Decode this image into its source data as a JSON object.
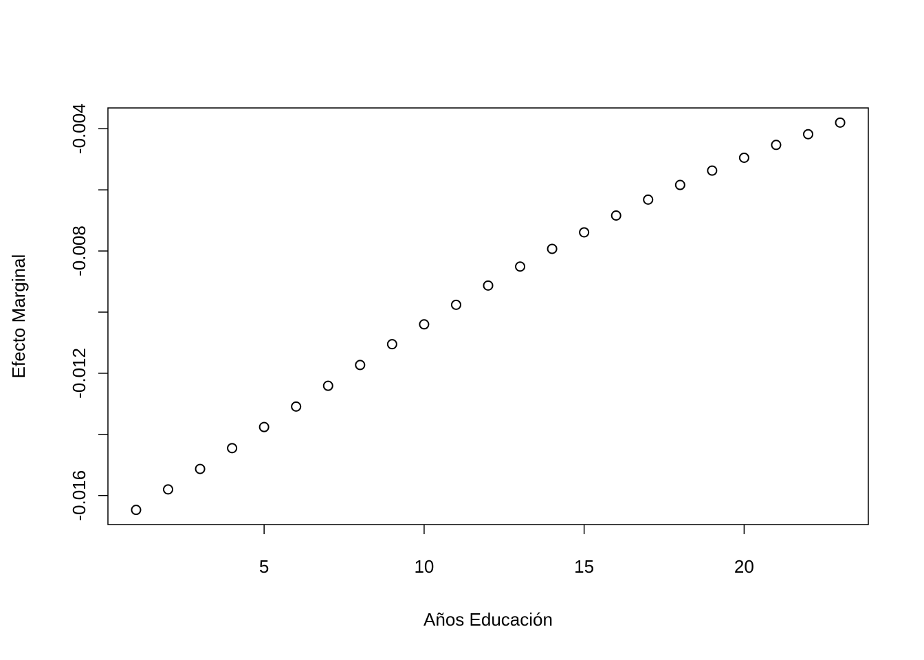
{
  "chart_data": {
    "type": "scatter",
    "title": "",
    "xlabel": "Años Educación",
    "ylabel": "Efecto Marginal",
    "x": [
      1,
      2,
      3,
      4,
      5,
      6,
      7,
      8,
      9,
      10,
      11,
      12,
      13,
      14,
      15,
      16,
      17,
      18,
      19,
      20,
      21,
      22,
      23
    ],
    "y": [
      -0.01647,
      -0.0158,
      -0.01513,
      -0.01445,
      -0.01376,
      -0.01309,
      -0.01241,
      -0.01173,
      -0.01105,
      -0.0104,
      -0.00976,
      -0.00913,
      -0.00851,
      -0.00793,
      -0.00739,
      -0.00684,
      -0.00632,
      -0.00584,
      -0.00537,
      -0.00495,
      -0.00453,
      -0.00418,
      -0.0038
    ],
    "xlim": [
      0.12,
      23.88
    ],
    "ylim": [
      -0.01695,
      -0.00332
    ],
    "x_ticks": [
      5,
      10,
      15,
      20
    ],
    "x_tick_labels": [
      "5",
      "10",
      "15",
      "20"
    ],
    "y_ticks": [
      -0.016,
      -0.014,
      -0.012,
      -0.01,
      -0.008,
      -0.006,
      -0.004
    ],
    "y_tick_labels": [
      "-0.016",
      "",
      "-0.012",
      "",
      "-0.008",
      "",
      "-0.004"
    ],
    "grid": false,
    "legend": "none",
    "marker": "open-circle",
    "colors": {
      "point": "#000000",
      "background": "#ffffff"
    }
  }
}
